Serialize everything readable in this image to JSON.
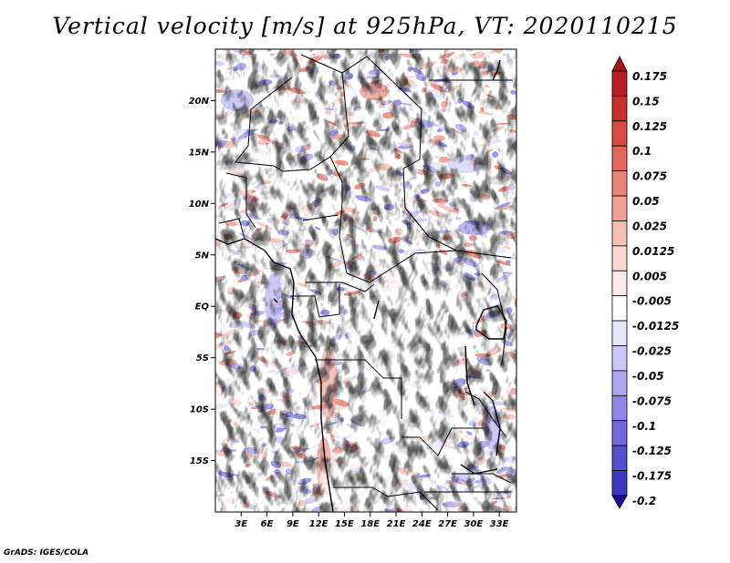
{
  "title": "Vertical velocity [m/s] at 925hPa, VT: 2020110215",
  "credit": "GrADS: IGES/COLA",
  "map": {
    "lon_range": [
      0,
      35
    ],
    "lat_range": [
      -20,
      25
    ],
    "lat_ticks": [
      {
        "lat": 20,
        "label": "20N"
      },
      {
        "lat": 15,
        "label": "15N"
      },
      {
        "lat": 10,
        "label": "10N"
      },
      {
        "lat": 5,
        "label": "5N"
      },
      {
        "lat": 0,
        "label": "EQ"
      },
      {
        "lat": -5,
        "label": "5S"
      },
      {
        "lat": -10,
        "label": "10S"
      },
      {
        "lat": -15,
        "label": "15S"
      }
    ],
    "lon_ticks": [
      {
        "lon": 3,
        "label": "3E"
      },
      {
        "lon": 6,
        "label": "6E"
      },
      {
        "lon": 9,
        "label": "9E"
      },
      {
        "lon": 12,
        "label": "12E"
      },
      {
        "lon": 15,
        "label": "15E"
      },
      {
        "lon": 18,
        "label": "18E"
      },
      {
        "lon": 21,
        "label": "21E"
      },
      {
        "lon": 24,
        "label": "24E"
      },
      {
        "lon": 27,
        "label": "27E"
      },
      {
        "lon": 30,
        "label": "30E"
      },
      {
        "lon": 33,
        "label": "33E"
      }
    ]
  },
  "colorbar": {
    "levels": [
      {
        "label": "0.175",
        "color": "#b51f24"
      },
      {
        "label": "0.15",
        "color": "#c8302c"
      },
      {
        "label": "0.125",
        "color": "#d84a42"
      },
      {
        "label": "0.1",
        "color": "#e4675c"
      },
      {
        "label": "0.075",
        "color": "#ea8478"
      },
      {
        "label": "0.05",
        "color": "#f0a197"
      },
      {
        "label": "0.025",
        "color": "#f6bfb6"
      },
      {
        "label": "0.0125",
        "color": "#fad7d0"
      },
      {
        "label": "0.005",
        "color": "#fdeae6"
      },
      {
        "label": "-0.005",
        "color": "#ffffff"
      },
      {
        "label": "-0.0125",
        "color": "#e6e5fb"
      },
      {
        "label": "-0.025",
        "color": "#cac8f6"
      },
      {
        "label": "-0.05",
        "color": "#aca8f0"
      },
      {
        "label": "-0.075",
        "color": "#8e88e8"
      },
      {
        "label": "-0.1",
        "color": "#706ade"
      },
      {
        "label": "-0.125",
        "color": "#5450d0"
      },
      {
        "label": "-0.175",
        "color": "#3c38c0"
      },
      {
        "label": "-0.2",
        "color": "#2a22aa"
      }
    ],
    "top_color": "#a51418",
    "bottom_color": "#1c0e96"
  }
}
